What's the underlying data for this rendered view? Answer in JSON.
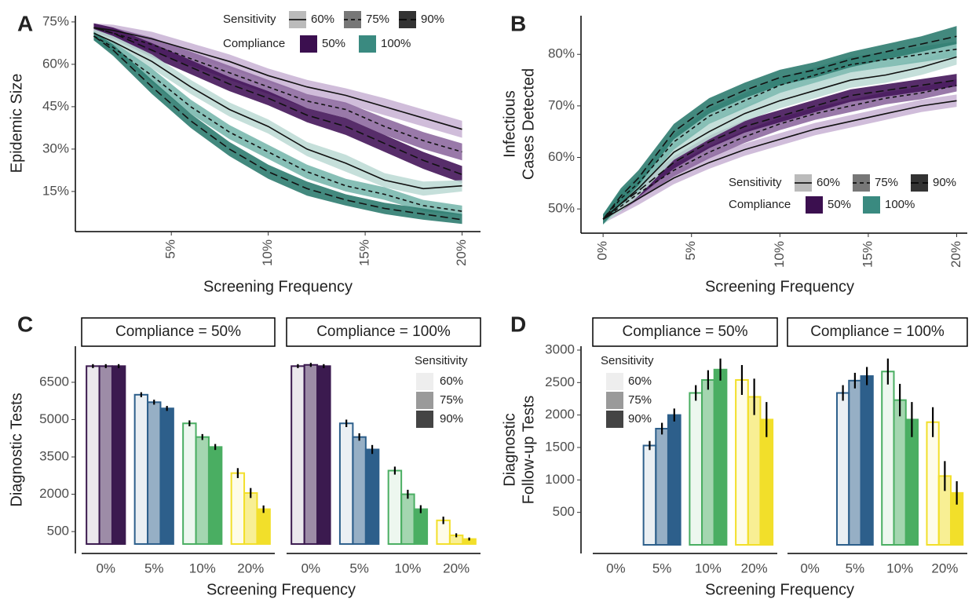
{
  "chart_data": [
    {
      "type": "line",
      "panel_label": "A",
      "ylabel": [
        "Epidemic Size"
      ],
      "xlabel": "Screening Frequency",
      "x": [
        1,
        2,
        4,
        6,
        8,
        10,
        12,
        14,
        16,
        18,
        20
      ],
      "xlim": [
        0.05,
        20.95
      ],
      "ylim": [
        0.8,
        77.2
      ],
      "xticks": [
        {
          "value": 5,
          "label": "5%"
        },
        {
          "value": 10,
          "label": "10%"
        },
        {
          "value": 15,
          "label": "15%"
        },
        {
          "value": 20,
          "label": "20%"
        }
      ],
      "yticks": [
        {
          "value": 15,
          "label": "15%"
        },
        {
          "value": 30,
          "label": "30%"
        },
        {
          "value": 45,
          "label": "45%"
        },
        {
          "value": 60,
          "label": "60%"
        },
        {
          "value": 75,
          "label": "75%"
        }
      ],
      "legend": {
        "position": "top-right",
        "sensitivity": {
          "title": "Sensitivity",
          "labels": [
            "60%",
            "75%",
            "90%"
          ],
          "dashes": [
            "solid",
            "dashed",
            "longdash"
          ],
          "swatch_colors": [
            "#bbbbbb",
            "#777777",
            "#333333"
          ]
        },
        "compliance": {
          "title": "Compliance",
          "labels": [
            "50%",
            "100%"
          ],
          "colors": [
            "#3b0f4f",
            "#3a8a80"
          ]
        }
      },
      "series": [
        {
          "color": "#cbb6d6",
          "dash": "solid",
          "values": [
            73,
            72,
            69,
            65,
            61,
            56,
            52,
            49,
            45,
            41,
            37
          ],
          "lower": [
            71.5,
            70,
            66.5,
            62.5,
            58.5,
            53.5,
            49.5,
            46,
            42,
            38,
            34
          ],
          "upper": [
            74.5,
            74,
            71.5,
            67.5,
            63.5,
            58.5,
            54.5,
            51.5,
            48,
            44,
            40
          ]
        },
        {
          "color": "#8e6aa0",
          "dash": "dashed",
          "values": [
            73,
            71,
            67,
            62,
            57,
            52,
            47,
            44,
            38,
            33,
            29
          ],
          "lower": [
            71.5,
            69,
            64.5,
            59.5,
            54.5,
            49.5,
            44.5,
            41,
            35,
            30,
            26
          ],
          "upper": [
            74.5,
            73,
            69.5,
            64.5,
            59.5,
            54.5,
            49.5,
            46.5,
            41,
            36,
            32
          ]
        },
        {
          "color": "#45165a",
          "dash": "longdash",
          "values": [
            73,
            71,
            65,
            59,
            53,
            48,
            42,
            38,
            32,
            26,
            21
          ],
          "lower": [
            71.5,
            69,
            62.5,
            56.5,
            50.5,
            45.5,
            39.5,
            35,
            29,
            23,
            18
          ],
          "upper": [
            74.5,
            73,
            67.5,
            61.5,
            55.5,
            50.5,
            44.5,
            41,
            35,
            29,
            24
          ]
        },
        {
          "color": "#bfdcd6",
          "dash": "solid",
          "values": [
            71,
            68,
            61,
            52,
            44,
            38,
            30,
            25,
            19,
            16,
            17
          ],
          "lower": [
            69.5,
            66,
            58.5,
            49.5,
            41.5,
            35.5,
            27.5,
            22,
            16.5,
            13.5,
            15
          ],
          "upper": [
            72.5,
            70,
            63.5,
            54.5,
            46.5,
            40.5,
            32.5,
            28,
            21.5,
            18.5,
            19
          ]
        },
        {
          "color": "#7ab8ae",
          "dash": "dashed",
          "values": [
            70,
            66,
            56,
            45,
            36,
            29,
            22,
            17,
            14,
            10,
            8
          ],
          "lower": [
            68.5,
            64,
            53.5,
            42.5,
            33.5,
            26.5,
            19.5,
            15,
            12,
            8,
            6.5
          ],
          "upper": [
            71.5,
            68,
            58.5,
            47.5,
            38.5,
            31.5,
            24.5,
            19.5,
            16.5,
            12,
            10
          ]
        },
        {
          "color": "#2f7c70",
          "dash": "longdash",
          "values": [
            70,
            65,
            52,
            40,
            30,
            22,
            16,
            12,
            9,
            7,
            5
          ],
          "lower": [
            68.5,
            63,
            49.5,
            37.5,
            27.5,
            19.5,
            13.5,
            10,
            7,
            5,
            3.5
          ],
          "upper": [
            71.5,
            67,
            54.5,
            42.5,
            32.5,
            24.5,
            18.5,
            14,
            11,
            9,
            7
          ]
        }
      ]
    },
    {
      "type": "line",
      "panel_label": "B",
      "ylabel": [
        "Infectious",
        "Cases Detected"
      ],
      "xlabel": "Screening Frequency",
      "x": [
        0,
        1,
        2,
        4,
        6,
        8,
        10,
        12,
        14,
        16,
        18,
        20
      ],
      "xlim": [
        -1.25,
        20.6
      ],
      "ylim": [
        45.3,
        87.5
      ],
      "xticks": [
        {
          "value": 0,
          "label": "0%"
        },
        {
          "value": 5,
          "label": "5%"
        },
        {
          "value": 10,
          "label": "10%"
        },
        {
          "value": 15,
          "label": "15%"
        },
        {
          "value": 20,
          "label": "20%"
        }
      ],
      "yticks": [
        {
          "value": 50,
          "label": "50%"
        },
        {
          "value": 60,
          "label": "60%"
        },
        {
          "value": 70,
          "label": "70%"
        },
        {
          "value": 80,
          "label": "80%"
        }
      ],
      "legend": {
        "position": "bottom-right",
        "sensitivity": {
          "title": "Sensitivity",
          "labels": [
            "60%",
            "75%",
            "90%"
          ],
          "dashes": [
            "solid",
            "dashed",
            "longdash"
          ],
          "swatch_colors": [
            "#bbbbbb",
            "#777777",
            "#333333"
          ]
        },
        "compliance": {
          "title": "Compliance",
          "labels": [
            "50%",
            "100%"
          ],
          "colors": [
            "#3b0f4f",
            "#3a8a80"
          ]
        }
      },
      "series": [
        {
          "color": "#cbb6d6",
          "dash": "solid",
          "values": [
            48,
            50,
            52,
            56,
            59,
            61.5,
            63.5,
            65.5,
            67,
            68.5,
            70,
            71
          ],
          "lower": [
            47.2,
            49,
            50.8,
            54.8,
            57.8,
            60.3,
            62.3,
            64.3,
            65.8,
            67.3,
            68.8,
            69.8
          ],
          "upper": [
            48.8,
            51,
            53.2,
            57.2,
            60.2,
            62.7,
            64.7,
            66.7,
            68.2,
            69.7,
            71.2,
            72.2
          ]
        },
        {
          "color": "#8e6aa0",
          "dash": "dashed",
          "values": [
            48,
            50.5,
            53,
            57.5,
            61,
            64,
            66.5,
            68.5,
            70,
            71.5,
            72.5,
            74
          ],
          "lower": [
            47.2,
            49.5,
            51.8,
            56.3,
            59.8,
            62.8,
            65.3,
            67.3,
            68.8,
            70.3,
            71.3,
            72.8
          ],
          "upper": [
            48.8,
            51.5,
            54.2,
            58.7,
            62.2,
            65.2,
            67.7,
            69.7,
            71.2,
            72.7,
            73.7,
            75.2
          ]
        },
        {
          "color": "#45165a",
          "dash": "longdash",
          "values": [
            48,
            51,
            53.5,
            59,
            63,
            66,
            68,
            70,
            72,
            73,
            74,
            75
          ],
          "lower": [
            47.2,
            50,
            52.3,
            57.8,
            61.8,
            64.8,
            66.8,
            68.8,
            70.8,
            71.8,
            72.8,
            73.8
          ],
          "upper": [
            48.8,
            52,
            54.7,
            60.2,
            64.2,
            67.2,
            69.2,
            71.2,
            73.2,
            74.2,
            75.2,
            76.2
          ]
        },
        {
          "color": "#bfdcd6",
          "dash": "solid",
          "values": [
            48,
            51,
            54,
            61,
            65,
            68.5,
            71,
            73,
            75,
            76,
            77.5,
            79.5
          ],
          "lower": [
            47,
            49.5,
            52.5,
            59.5,
            63.5,
            67,
            69.5,
            71.5,
            73.5,
            74.5,
            76,
            78
          ],
          "upper": [
            49,
            52.5,
            55.5,
            62.5,
            66.5,
            70,
            72.5,
            74.5,
            76.5,
            77.5,
            79,
            81
          ]
        },
        {
          "color": "#7ab8ae",
          "dash": "dashed",
          "values": [
            48,
            52,
            55,
            63,
            68,
            71,
            74,
            76,
            78,
            79,
            80,
            81
          ],
          "lower": [
            47,
            50.5,
            53.5,
            61.5,
            66.5,
            69.5,
            72.5,
            74.5,
            76.5,
            77.5,
            78.5,
            79.5
          ],
          "upper": [
            49,
            53.5,
            56.5,
            64.5,
            69.5,
            72.5,
            75.5,
            77.5,
            79.5,
            80.5,
            81.5,
            82.5
          ]
        },
        {
          "color": "#2f7c70",
          "dash": "longdash",
          "values": [
            48,
            52.5,
            56,
            65,
            70,
            73,
            75.5,
            77,
            79,
            80.5,
            82,
            83.5
          ],
          "lower": [
            47,
            51,
            54.5,
            63.5,
            68.5,
            71.5,
            74,
            75.5,
            77.5,
            79,
            80.5,
            82
          ],
          "upper": [
            49,
            54,
            57.5,
            66.5,
            71.5,
            74.5,
            77,
            78.5,
            80.5,
            82,
            83.5,
            85.5
          ]
        }
      ]
    },
    {
      "type": "bar",
      "panel_label": "C",
      "ylabel": [
        "Diagnostic Tests"
      ],
      "xlabel": "Screening Frequency",
      "categories": [
        "0%",
        "5%",
        "10%",
        "20%"
      ],
      "category_colors": [
        "#3b1a4f",
        "#2d5f8b",
        "#4aae62",
        "#f2df2a"
      ],
      "ylim": [
        -380,
        7950
      ],
      "yticks": [
        500,
        2000,
        3500,
        5000,
        6500
      ],
      "legend": {
        "title": "Sensitivity",
        "labels": [
          "60%",
          "75%",
          "90%"
        ],
        "swatch_colors": [
          "#eeeeee",
          "#9a9a9a",
          "#444444"
        ]
      },
      "facets": [
        {
          "title": "Compliance = 50%",
          "series": [
            {
              "opacity": 0.1,
              "values": [
                7150,
                6000,
                4850,
                2850
              ],
              "errors": [
                80,
                100,
                120,
                200
              ]
            },
            {
              "opacity": 0.5,
              "values": [
                7150,
                5700,
                4300,
                2050
              ],
              "errors": [
                80,
                100,
                120,
                200
              ]
            },
            {
              "opacity": 1,
              "values": [
                7150,
                5450,
                3900,
                1400
              ],
              "errors": [
                80,
                100,
                120,
                150
              ]
            }
          ]
        },
        {
          "title": "Compliance = 100%",
          "series": [
            {
              "opacity": 0.1,
              "values": [
                7150,
                4850,
                2950,
                950
              ],
              "errors": [
                80,
                150,
                160,
                150
              ]
            },
            {
              "opacity": 0.5,
              "values": [
                7200,
                4300,
                2000,
                350
              ],
              "errors": [
                80,
                150,
                180,
                80
              ]
            },
            {
              "opacity": 1,
              "values": [
                7150,
                3800,
                1400,
                200
              ],
              "errors": [
                80,
                180,
                160,
                60
              ]
            }
          ]
        }
      ]
    },
    {
      "type": "bar",
      "panel_label": "D",
      "ylabel": [
        "Diagnostic",
        "Follow-up Tests"
      ],
      "xlabel": "Screening Frequency",
      "categories": [
        "0%",
        "5%",
        "10%",
        "20%"
      ],
      "category_colors": [
        "#3b1a4f",
        "#2d5f8b",
        "#4aae62",
        "#f2df2a"
      ],
      "ylim": [
        -133,
        3060
      ],
      "yticks": [
        500,
        1000,
        1500,
        2000,
        2500,
        3000
      ],
      "legend": {
        "title": "Sensitivity",
        "labels": [
          "60%",
          "75%",
          "90%"
        ],
        "swatch_colors": [
          "#eeeeee",
          "#9a9a9a",
          "#444444"
        ]
      },
      "facets": [
        {
          "title": "Compliance = 50%",
          "series": [
            {
              "opacity": 0.1,
              "values": [
                0,
                1530,
                2340,
                2540
              ],
              "errors": [
                0,
                70,
                120,
                230
              ]
            },
            {
              "opacity": 0.5,
              "values": [
                0,
                1790,
                2540,
                2280
              ],
              "errors": [
                0,
                90,
                150,
                280
              ]
            },
            {
              "opacity": 1,
              "values": [
                0,
                2000,
                2700,
                1930
              ],
              "errors": [
                0,
                100,
                170,
                270
              ]
            }
          ]
        },
        {
          "title": "Compliance = 100%",
          "series": [
            {
              "opacity": 0.1,
              "values": [
                0,
                2340,
                2670,
                1890
              ],
              "errors": [
                0,
                120,
                200,
                230
              ]
            },
            {
              "opacity": 0.5,
              "values": [
                0,
                2530,
                2230,
                1060
              ],
              "errors": [
                0,
                120,
                250,
                230
              ]
            },
            {
              "opacity": 1,
              "values": [
                0,
                2600,
                1930,
                800
              ],
              "errors": [
                0,
                140,
                270,
                180
              ]
            }
          ]
        }
      ]
    }
  ]
}
